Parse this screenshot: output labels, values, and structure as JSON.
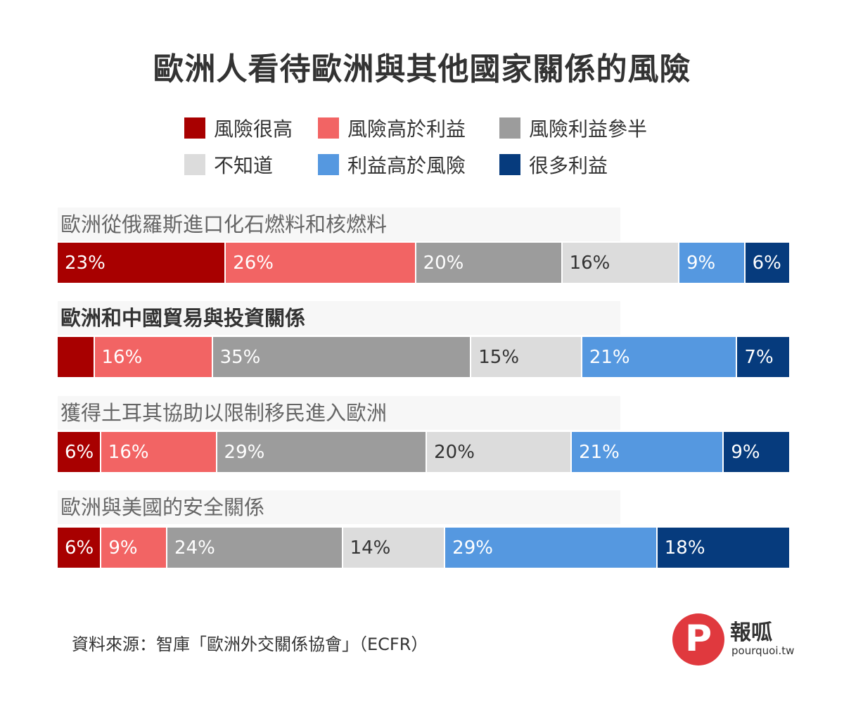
{
  "title": "歐洲人看待歐洲與其他國家關係的風險",
  "source": "資料來源：智庫「歐洲外交關係協會」（ECFR）",
  "logo": {
    "name": "報呱",
    "site": "pourquoi.tw"
  },
  "colors": {
    "very_high_risk": "#a80000",
    "risk_over_benefit": "#f26464",
    "balanced": "#9c9c9c",
    "dont_know": "#dcdcdc",
    "benefit_over_risk": "#5598e0",
    "many_benefits": "#063b7d"
  },
  "chart_data": {
    "type": "bar",
    "orientation": "horizontal",
    "stacked": true,
    "title": "歐洲人看待歐洲與其他國家關係的風險",
    "categories": [
      "歐洲從俄羅斯進口化石燃料和核燃料",
      "歐洲和中國貿易與投資關係",
      "獲得土耳其協助以限制移民進入歐洲",
      "歐洲與美國的安全關係"
    ],
    "bold_category_index": 1,
    "legend_position": "top",
    "series": [
      {
        "name": "風險很高",
        "color": "#a80000",
        "values": [
          23,
          5,
          6,
          6
        ],
        "labels": [
          "23%",
          "",
          "6%",
          "6%"
        ],
        "label_color": "#ffffff"
      },
      {
        "name": "風險高於利益",
        "color": "#f26464",
        "values": [
          26,
          16,
          16,
          9
        ],
        "labels": [
          "26%",
          "16%",
          "16%",
          "9%"
        ],
        "label_color": "#ffffff"
      },
      {
        "name": "風險利益參半",
        "color": "#9c9c9c",
        "values": [
          20,
          35,
          29,
          24
        ],
        "labels": [
          "20%",
          "35%",
          "29%",
          "24%"
        ],
        "label_color": "#ffffff"
      },
      {
        "name": "不知道",
        "color": "#dcdcdc",
        "values": [
          16,
          15,
          20,
          14
        ],
        "labels": [
          "16%",
          "15%",
          "20%",
          "14%"
        ],
        "label_color": "#333333"
      },
      {
        "name": "利益高於風險",
        "color": "#5598e0",
        "values": [
          9,
          21,
          21,
          29
        ],
        "labels": [
          "9%",
          "21%",
          "21%",
          "29%"
        ],
        "label_color": "#ffffff"
      },
      {
        "name": "很多利益",
        "color": "#063b7d",
        "values": [
          6,
          7,
          9,
          18
        ],
        "labels": [
          "6%",
          "7%",
          "9%",
          "18%"
        ],
        "label_color": "#ffffff"
      }
    ]
  }
}
